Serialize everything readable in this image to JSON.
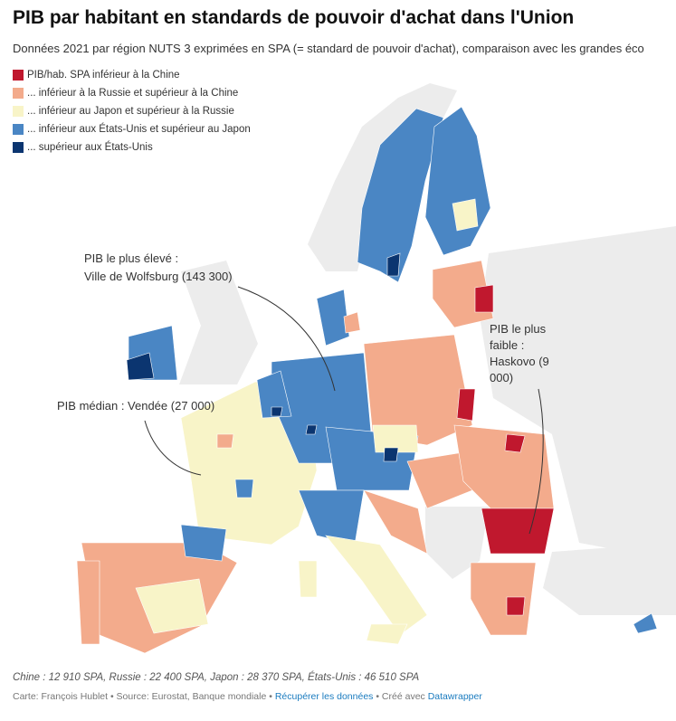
{
  "header": {
    "title": "PIB par habitant en standards de pouvoir d'achat dans l'Union",
    "subtitle": "Données 2021 par région NUTS 3 exprimées en SPA (= standard de pouvoir d'achat), comparaison avec les grandes éco"
  },
  "legend": [
    {
      "label": "PIB/hab. SPA inférieur à la Chine",
      "color": "#c0182e"
    },
    {
      "label": "... inférieur à la Russie et supérieur à la Chine",
      "color": "#f3ab8c"
    },
    {
      "label": "... inférieur au Japon et supérieur à la Russie",
      "color": "#f8f4c8"
    },
    {
      "label": "... inférieur aux États-Unis et supérieur au Japon",
      "color": "#4a86c4"
    },
    {
      "label": "... supérieur aux États-Unis",
      "color": "#0b3570"
    }
  ],
  "annotations": [
    {
      "lines": [
        "PIB le plus élevé :",
        "Ville de Wolfsburg (143 300)"
      ]
    },
    {
      "lines": [
        "PIB le plus faible : Haskovo (9 000)"
      ]
    },
    {
      "lines": [
        "PIB médian : Vendée (27 000)"
      ]
    }
  ],
  "footer": {
    "note": "Chine : 12 910 SPA, Russie : 22 400 SPA, Japon : 28 370 SPA, États-Unis : 46 510 SPA",
    "credit": "Carte: François Hublet • Source: Eurostat, Banque mondiale • ",
    "link1": "Récupérer les données",
    "sep": " • Créé avec ",
    "link2": "Datawrapper"
  }
}
